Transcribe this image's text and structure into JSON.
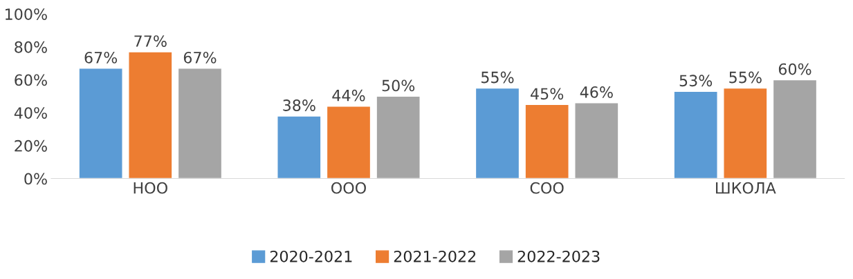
{
  "chart_data": {
    "type": "bar",
    "categories": [
      "НОО",
      "ООО",
      "СОО",
      "ШКОЛА"
    ],
    "series": [
      {
        "name": "2020-2021",
        "color": "#5b9bd5",
        "values": [
          67,
          38,
          55,
          53
        ],
        "value_labels": [
          "67%",
          "38%",
          "55%",
          "53%"
        ]
      },
      {
        "name": "2021-2022",
        "color": "#ed7d31",
        "values": [
          77,
          44,
          45,
          55
        ],
        "value_labels": [
          "77%",
          "44%",
          "45%",
          "55%"
        ]
      },
      {
        "name": "2022-2023",
        "color": "#a5a5a5",
        "values": [
          67,
          50,
          46,
          60
        ],
        "value_labels": [
          "67%",
          "50%",
          "46%",
          "60%"
        ]
      }
    ],
    "ylim": [
      0,
      100
    ],
    "yticks": [
      {
        "value": 0,
        "label": "0%"
      },
      {
        "value": 20,
        "label": "20%"
      },
      {
        "value": 40,
        "label": "40%"
      },
      {
        "value": 60,
        "label": "60%"
      },
      {
        "value": 80,
        "label": "80%"
      },
      {
        "value": 100,
        "label": "100%"
      }
    ],
    "grid": false,
    "legend": "bottom"
  }
}
